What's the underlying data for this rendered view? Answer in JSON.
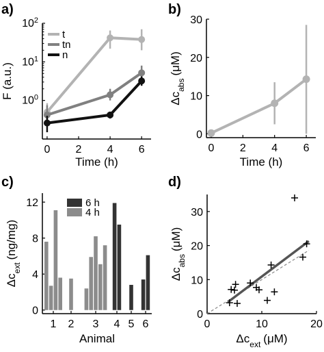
{
  "colors": {
    "t": "#b3b3b3",
    "tn": "#808080",
    "n": "#111111",
    "h6": "#333333",
    "h4": "#8c8c8c",
    "fit": "#555555",
    "identity": "#888888"
  },
  "chart_data": [
    {
      "panel": "a)",
      "type": "line",
      "xlabel": "Time (h)",
      "ylabel": "F (a.u.)",
      "yscale": "log",
      "xlim": [
        -0.3,
        6.6
      ],
      "ylim": [
        0.1,
        100
      ],
      "xticks": [
        "0",
        "2",
        "4",
        "6"
      ],
      "yticks": [
        {
          "value": 1,
          "base": "10",
          "exp": "0"
        },
        {
          "value": 10,
          "base": "10",
          "exp": "1"
        },
        {
          "value": 100,
          "base": "10",
          "exp": "2"
        }
      ],
      "legend": [
        "t",
        "tn",
        "n"
      ],
      "series": [
        {
          "name": "t",
          "color_key": "t",
          "x": [
            0,
            4,
            6
          ],
          "y": [
            0.5,
            42,
            38
          ],
          "err_low": [
            0.25,
            22,
            20
          ],
          "err_high": [
            0.85,
            65,
            70
          ]
        },
        {
          "name": "tn",
          "color_key": "tn",
          "x": [
            0,
            4,
            6
          ],
          "y": [
            0.42,
            1.4,
            5.2
          ],
          "err_low": [
            0.2,
            1.0,
            3.5
          ],
          "err_high": [
            0.75,
            2.0,
            8.0
          ]
        },
        {
          "name": "n",
          "color_key": "n",
          "x": [
            0,
            4,
            6
          ],
          "y": [
            0.26,
            0.42,
            3.2
          ],
          "err_low": [
            0.15,
            0.34,
            2.4
          ],
          "err_high": [
            0.4,
            0.5,
            4.2
          ]
        }
      ]
    },
    {
      "panel": "b)",
      "type": "line",
      "xlabel": "Time (h)",
      "ylabel_main": "Δc",
      "ylabel_sub": "abs",
      "ylabel_unit": "(μM)",
      "xlim": [
        -0.3,
        6.6
      ],
      "ylim": [
        -1,
        30
      ],
      "xticks": [
        "0",
        "2",
        "4",
        "6"
      ],
      "yticks": [
        "0",
        "10",
        "20",
        "30"
      ],
      "series": [
        {
          "color_key": "t",
          "x": [
            0,
            4,
            6
          ],
          "y": [
            0.2,
            8,
            14.3
          ],
          "err_low": [
            0,
            2.5,
            0
          ],
          "err_high": [
            0.4,
            13.5,
            28.5
          ]
        }
      ]
    },
    {
      "panel": "c)",
      "type": "bar",
      "xlabel": "Animal",
      "ylabel_main": "Δc",
      "ylabel_sub": "ext",
      "ylabel_unit": "(ng/mg)",
      "ylim": [
        -0.4,
        13
      ],
      "yticks": [
        "0",
        "4",
        "8",
        "12"
      ],
      "categories": [
        "1",
        "2",
        "3",
        "4",
        "5",
        "6"
      ],
      "legend": [
        "6 h",
        "4 h"
      ],
      "groups": [
        {
          "category": "1",
          "series": "4 h",
          "values": [
            7.6,
            2.7,
            11.1,
            3.6
          ]
        },
        {
          "category": "2",
          "series": "4 h",
          "values": [
            3.5
          ]
        },
        {
          "category": "3",
          "series": "4 h",
          "values": [
            2.4,
            5.9,
            8.2,
            5.1,
            7.2
          ]
        },
        {
          "category": "4",
          "series": "6 h",
          "values": [
            11.9,
            9.5
          ]
        },
        {
          "category": "5",
          "series": "6 h",
          "values": [
            2.8
          ]
        },
        {
          "category": "6",
          "series": "6 h",
          "values": [
            3.4,
            6.1
          ]
        }
      ]
    },
    {
      "panel": "d)",
      "type": "scatter",
      "xlabel_main": "Δc",
      "xlabel_sub": "ext",
      "xlabel_unit": "(μM)",
      "ylabel_main": "Δc",
      "ylabel_sub": "abs",
      "ylabel_unit": "(μM)",
      "xlim": [
        0,
        20
      ],
      "ylim": [
        0,
        35
      ],
      "xticks": [
        "0",
        "10",
        "20"
      ],
      "yticks": [
        "0",
        "10",
        "20",
        "30"
      ],
      "points": [
        [
          4.1,
          3.2
        ],
        [
          4.4,
          7.1
        ],
        [
          5.0,
          6.9
        ],
        [
          5.2,
          8.6
        ],
        [
          5.5,
          3.0
        ],
        [
          7.9,
          9.0
        ],
        [
          9.0,
          7.7
        ],
        [
          9.5,
          7.0
        ],
        [
          11.0,
          3.9
        ],
        [
          11.7,
          14.3
        ],
        [
          12.3,
          6.4
        ],
        [
          16.0,
          34.0
        ],
        [
          17.5,
          16.6
        ],
        [
          18.2,
          20.5
        ]
      ],
      "fit_line": {
        "x": [
          3.8,
          18.6
        ],
        "y": [
          3.4,
          21.3
        ]
      },
      "identity_line": {
        "x": [
          0,
          18.6
        ],
        "y": [
          0,
          18.6
        ]
      }
    }
  ]
}
